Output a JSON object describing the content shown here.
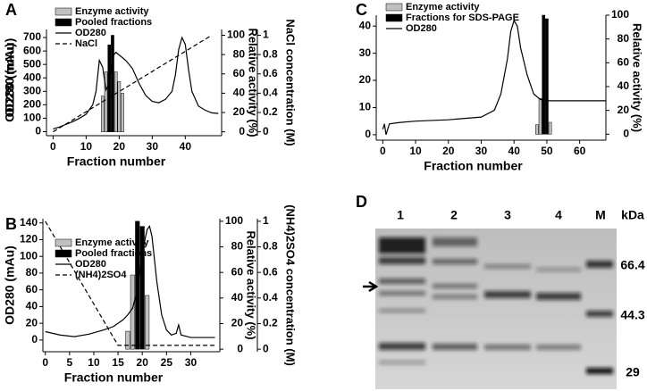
{
  "chart_data": [
    {
      "type": "combo",
      "panel": "A",
      "xlabel": "Fraction number",
      "ylabel": "OD280 (mAu)",
      "y2label": "Relative activity (%)",
      "y3label": "NaCl concentration (M)",
      "xlim": [
        -2,
        51
      ],
      "xticks": [
        0,
        10,
        20,
        30,
        40
      ],
      "ylim": [
        -30,
        760
      ],
      "yticks": [
        0,
        100,
        200,
        300,
        400,
        500,
        600,
        700
      ],
      "y2lim": [
        -4,
        106
      ],
      "y2ticks": [
        0,
        20,
        40,
        60,
        80,
        100
      ],
      "y3lim": [
        -0.04,
        1.06
      ],
      "y3ticks": [
        0,
        0.2,
        0.4,
        0.6,
        0.8,
        1
      ],
      "legend": "upper left",
      "series": [
        {
          "name": "Enzyme activity",
          "type": "bar",
          "axis": "y2",
          "color": "#c0c0c0",
          "x": [
            15,
            16,
            19,
            20,
            21
          ],
          "values": [
            37,
            62,
            62,
            52,
            40
          ]
        },
        {
          "name": "Pooled fractions",
          "type": "bar",
          "axis": "y2",
          "color": "#000000",
          "x": [
            17,
            18
          ],
          "values": [
            90,
            100
          ]
        },
        {
          "name": "OD280",
          "type": "line",
          "color": "#000000",
          "style": "solid",
          "x": [
            0,
            2,
            4,
            6,
            8,
            10,
            12,
            13,
            14,
            15,
            16,
            17,
            18,
            19,
            20,
            22,
            24,
            26,
            28,
            30,
            32,
            34,
            36,
            37,
            38,
            39,
            40,
            41,
            42,
            44,
            46,
            48,
            50
          ],
          "values": [
            20,
            35,
            55,
            75,
            100,
            130,
            200,
            300,
            530,
            480,
            310,
            360,
            560,
            590,
            570,
            530,
            470,
            360,
            270,
            225,
            215,
            240,
            300,
            420,
            610,
            700,
            650,
            460,
            300,
            190,
            160,
            140,
            135
          ]
        },
        {
          "name": "NaCl",
          "type": "line",
          "axis": "y3",
          "color": "#000000",
          "style": "dashed",
          "x": [
            0,
            48
          ],
          "values": [
            0,
            1
          ]
        }
      ]
    },
    {
      "type": "combo",
      "panel": "B",
      "xlabel": "Fraction number",
      "ylabel": "OD280 (mAu)",
      "y2label": "Relative activity (%)",
      "y3label": "(NH4)2SO4 concentration (M)",
      "xlim": [
        -0.5,
        36
      ],
      "xticks": [
        0,
        5,
        10,
        15,
        20,
        25,
        30
      ],
      "ylim": [
        -14,
        145
      ],
      "yticks": [
        0,
        20,
        40,
        60,
        80,
        100,
        120,
        140
      ],
      "y2lim": [
        -2,
        102
      ],
      "y2ticks": [
        0,
        20,
        40,
        60,
        80,
        100
      ],
      "y3lim": [
        -0.02,
        1.02
      ],
      "y3ticks": [
        0,
        0.2,
        0.4,
        0.6,
        0.8,
        1
      ],
      "legend": "upper left",
      "series": [
        {
          "name": "Enzyme activity",
          "type": "bar",
          "axis": "y2",
          "color": "#c0c0c0",
          "x": [
            17,
            18,
            21
          ],
          "values": [
            14,
            58,
            42
          ]
        },
        {
          "name": "Pooled fractions",
          "type": "bar",
          "axis": "y2",
          "color": "#000000",
          "x": [
            19,
            20
          ],
          "values": [
            100,
            96
          ]
        },
        {
          "name": "OD280",
          "type": "line",
          "color": "#000000",
          "style": "solid",
          "x": [
            0,
            3,
            6,
            9,
            12,
            14,
            15,
            16,
            17,
            18,
            19,
            20,
            21,
            21.5,
            22,
            23,
            24,
            25,
            26,
            27,
            27.5,
            28,
            30,
            35
          ],
          "values": [
            10,
            6,
            4,
            7,
            12,
            16,
            20,
            24,
            30,
            38,
            60,
            105,
            132,
            136,
            124,
            70,
            30,
            12,
            6,
            8,
            18,
            6,
            3,
            3
          ]
        },
        {
          "name": "(NH4)2SO4",
          "type": "line",
          "axis": "y3",
          "color": "#000000",
          "style": "dashed",
          "x": [
            0,
            15,
            35
          ],
          "values": [
            1,
            0.03,
            0.03
          ]
        }
      ]
    },
    {
      "type": "combo",
      "panel": "C",
      "xlabel": "Fraction number",
      "ylabel": "OD280 (mAu)",
      "y2label": "Relative activity (%)",
      "xlim": [
        -2,
        68
      ],
      "xticks": [
        0,
        10,
        20,
        30,
        40,
        50,
        60
      ],
      "ylim": [
        -2,
        44
      ],
      "yticks": [
        0,
        10,
        20,
        30,
        40
      ],
      "y2lim": [
        -5,
        100
      ],
      "y2ticks": [
        0,
        20,
        40,
        60,
        80,
        100
      ],
      "legend": "upper left",
      "series": [
        {
          "name": "Enzyme activity",
          "type": "bar",
          "axis": "y2",
          "color": "#c0c0c0",
          "x": [
            47,
            48,
            51
          ],
          "values": [
            8,
            30,
            10
          ]
        },
        {
          "name": "Fractions for SDS-PAGE",
          "type": "bar",
          "axis": "y2",
          "color": "#000000",
          "x": [
            49,
            50
          ],
          "values": [
            100,
            97
          ]
        },
        {
          "name": "OD280",
          "type": "line",
          "color": "#000000",
          "style": "solid",
          "x": [
            0,
            0.5,
            1,
            2,
            5,
            10,
            20,
            30,
            34,
            36,
            38,
            39,
            40,
            41,
            42,
            44,
            46,
            48,
            50,
            55,
            60,
            68
          ],
          "values": [
            2,
            4,
            0,
            4,
            4.5,
            5,
            5.5,
            6.5,
            9,
            15,
            28,
            38,
            42,
            40,
            32,
            22,
            15,
            13,
            12.5,
            12.5,
            12.5,
            12.5
          ]
        }
      ]
    }
  ],
  "gel": {
    "panel": "D",
    "lanes": [
      "1",
      "2",
      "3",
      "4",
      "M"
    ],
    "unit": "kDa",
    "markers": [
      66.4,
      44.3,
      29
    ]
  }
}
